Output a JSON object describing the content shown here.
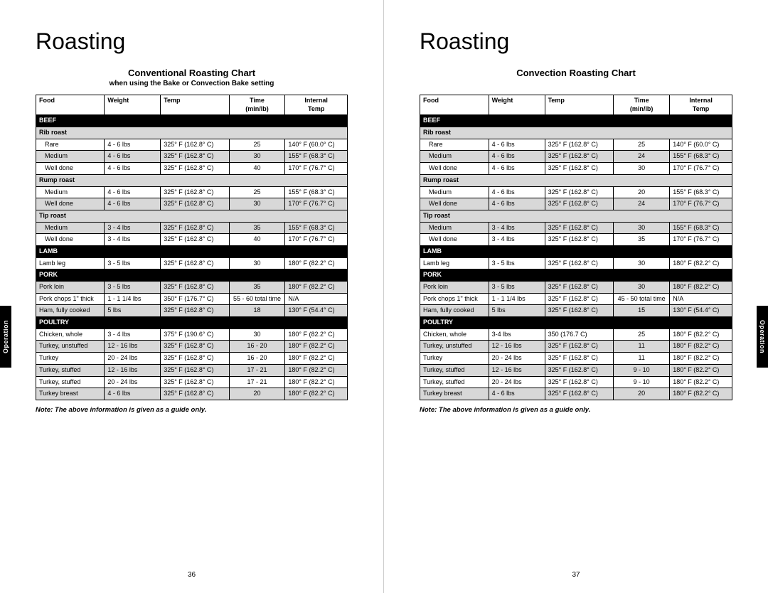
{
  "side_tab_label": "Operation",
  "left": {
    "page_title": "Roasting",
    "chart_title": "Conventional Roasting Chart",
    "chart_subtitle": "when using the Bake or Convection Bake setting",
    "headers": {
      "food": "Food",
      "weight": "Weight",
      "temp": "Temp",
      "time1": "Time",
      "time2": "(min/lb)",
      "internal1": "Internal",
      "internal2": "Temp"
    },
    "note": "Note: The above information is given as a guide only.",
    "page_num": "36",
    "sections": [
      {
        "name": "BEEF",
        "groups": [
          {
            "sub": "Rib roast",
            "rows": [
              {
                "food": "Rare",
                "weight": "4 - 6 lbs",
                "temp": "325° F (162.8° C)",
                "time": "25",
                "internal": "140° F (60.0° C)",
                "alt": false
              },
              {
                "food": "Medium",
                "weight": "4 - 6 lbs",
                "temp": "325° F (162.8° C)",
                "time": "30",
                "internal": "155° F (68.3° C)",
                "alt": true
              },
              {
                "food": "Well done",
                "weight": "4 - 6 lbs",
                "temp": "325° F (162.8° C)",
                "time": "40",
                "internal": "170° F (76.7° C)",
                "alt": false
              }
            ]
          },
          {
            "sub": "Rump roast",
            "rows": [
              {
                "food": "Medium",
                "weight": "4 - 6 lbs",
                "temp": "325° F (162.8° C)",
                "time": "25",
                "internal": "155° F (68.3° C)",
                "alt": false
              },
              {
                "food": "Well done",
                "weight": "4 - 6 lbs",
                "temp": "325° F (162.8° C)",
                "time": "30",
                "internal": "170° F (76.7° C)",
                "alt": true
              }
            ]
          },
          {
            "sub": "Tip roast",
            "rows": [
              {
                "food": "Medium",
                "weight": "3 - 4 lbs",
                "temp": "325° F (162.8° C)",
                "time": "35",
                "internal": "155° F (68.3° C)",
                "alt": true
              },
              {
                "food": "Well done",
                "weight": "3 - 4 lbs",
                "temp": "325° F (162.8° C)",
                "time": "40",
                "internal": "170° F (76.7° C)",
                "alt": false
              }
            ]
          }
        ]
      },
      {
        "name": "LAMB",
        "groups": [
          {
            "sub": null,
            "rows": [
              {
                "food": "Lamb leg",
                "weight": "3 - 5 lbs",
                "temp": "325° F (162.8° C)",
                "time": "30",
                "internal": "180° F (82.2° C)",
                "alt": false,
                "noindent": true
              }
            ]
          }
        ]
      },
      {
        "name": "PORK",
        "groups": [
          {
            "sub": null,
            "rows": [
              {
                "food": "Pork loin",
                "weight": "3 - 5 lbs",
                "temp": "325° F (162.8° C)",
                "time": "35",
                "internal": "180° F (82.2° C)",
                "alt": true,
                "noindent": true
              },
              {
                "food": "Pork chops 1\" thick",
                "weight": "1 - 1 1/4 lbs",
                "temp": "350° F (176.7° C)",
                "time": "55 - 60 total time",
                "internal": "N/A",
                "alt": false,
                "noindent": true
              },
              {
                "food": "Ham, fully cooked",
                "weight": "5 lbs",
                "temp": "325° F (162.8° C)",
                "time": "18",
                "internal": "130° F (54.4° C)",
                "alt": true,
                "noindent": true
              }
            ]
          }
        ]
      },
      {
        "name": "POULTRY",
        "groups": [
          {
            "sub": null,
            "rows": [
              {
                "food": "Chicken, whole",
                "weight": "3 - 4 lbs",
                "temp": "375° F (190.6° C)",
                "time": "30",
                "internal": "180° F (82.2° C)",
                "alt": false,
                "noindent": true
              },
              {
                "food": "Turkey, unstuffed",
                "weight": "12 - 16 lbs",
                "temp": "325° F (162.8° C)",
                "time": "16 - 20",
                "internal": "180° F (82.2° C)",
                "alt": true,
                "noindent": true
              },
              {
                "food": "Turkey",
                "weight": "20 - 24 lbs",
                "temp": "325° F (162.8° C)",
                "time": "16 - 20",
                "internal": "180° F (82.2° C)",
                "alt": false,
                "noindent": true
              },
              {
                "food": "Turkey, stuffed",
                "weight": "12 - 16 lbs",
                "temp": "325° F (162.8° C)",
                "time": "17 - 21",
                "internal": "180° F (82.2° C)",
                "alt": true,
                "noindent": true
              },
              {
                "food": "Turkey, stuffed",
                "weight": "20 - 24 lbs",
                "temp": "325° F (162.8° C)",
                "time": "17 - 21",
                "internal": "180° F (82.2° C)",
                "alt": false,
                "noindent": true
              },
              {
                "food": "Turkey breast",
                "weight": "4 - 6 lbs",
                "temp": "325° F (162.8° C)",
                "time": "20",
                "internal": "180° F (82.2° C)",
                "alt": true,
                "noindent": true
              }
            ]
          }
        ]
      }
    ]
  },
  "right": {
    "page_title": "Roasting",
    "chart_title": "Convection Roasting Chart",
    "chart_subtitle": "",
    "headers": {
      "food": "Food",
      "weight": "Weight",
      "temp": "Temp",
      "time1": "Time",
      "time2": "(min/lb)",
      "internal1": "Internal",
      "internal2": "Temp"
    },
    "note": "Note: The above information is given as a guide only.",
    "page_num": "37",
    "sections": [
      {
        "name": "BEEF",
        "groups": [
          {
            "sub": "Rib roast",
            "rows": [
              {
                "food": "Rare",
                "weight": "4 - 6 lbs",
                "temp": "325° F (162.8° C)",
                "time": "25",
                "internal": "140° F (60.0° C)",
                "alt": false
              },
              {
                "food": "Medium",
                "weight": "4 - 6 lbs",
                "temp": "325° F (162.8° C)",
                "time": "24",
                "internal": "155° F (68.3° C)",
                "alt": true
              },
              {
                "food": "Well done",
                "weight": "4 - 6 lbs",
                "temp": "325° F (162.8° C)",
                "time": "30",
                "internal": "170° F (76.7° C)",
                "alt": false
              }
            ]
          },
          {
            "sub": "Rump roast",
            "rows": [
              {
                "food": "Medium",
                "weight": "4 - 6 lbs",
                "temp": "325° F (162.8° C)",
                "time": "20",
                "internal": "155° F (68.3° C)",
                "alt": false
              },
              {
                "food": "Well done",
                "weight": "4 - 6 lbs",
                "temp": "325° F (162.8° C)",
                "time": "24",
                "internal": "170° F (76.7° C)",
                "alt": true
              }
            ]
          },
          {
            "sub": "Tip roast",
            "rows": [
              {
                "food": "Medium",
                "weight": "3 - 4 lbs",
                "temp": "325° F (162.8° C)",
                "time": "30",
                "internal": "155° F (68.3° C)",
                "alt": true
              },
              {
                "food": "Well done",
                "weight": "3 - 4 lbs",
                "temp": "325° F (162.8° C)",
                "time": "35",
                "internal": "170° F (76.7° C)",
                "alt": false
              }
            ]
          }
        ]
      },
      {
        "name": "LAMB",
        "groups": [
          {
            "sub": null,
            "rows": [
              {
                "food": "Lamb leg",
                "weight": "3 - 5 lbs",
                "temp": "325° F (162.8° C)",
                "time": "30",
                "internal": "180° F (82.2° C)",
                "alt": false,
                "noindent": true
              }
            ]
          }
        ]
      },
      {
        "name": "PORK",
        "groups": [
          {
            "sub": null,
            "rows": [
              {
                "food": "Pork loin",
                "weight": "3 - 5 lbs",
                "temp": "325° F (162.8° C)",
                "time": "30",
                "internal": "180° F (82.2° C)",
                "alt": true,
                "noindent": true
              },
              {
                "food": "Pork chops 1\" thick",
                "weight": "1 - 1 1/4 lbs",
                "temp": "325° F (162.8° C)",
                "time": "45 - 50 total time",
                "internal": "N/A",
                "alt": false,
                "noindent": true
              },
              {
                "food": "Ham, fully cooked",
                "weight": "5 lbs",
                "temp": "325° F (162.8° C)",
                "time": "15",
                "internal": "130° F (54.4° C)",
                "alt": true,
                "noindent": true
              }
            ]
          }
        ]
      },
      {
        "name": "POULTRY",
        "groups": [
          {
            "sub": null,
            "rows": [
              {
                "food": "Chicken, whole",
                "weight": "3-4 lbs",
                "temp": "350 (176.7 C)",
                "time": "25",
                "internal": "180° F (82.2° C)",
                "alt": false,
                "noindent": true
              },
              {
                "food": "Turkey, unstuffed",
                "weight": "12 - 16 lbs",
                "temp": "325° F (162.8° C)",
                "time": "11",
                "internal": "180° F (82.2° C)",
                "alt": true,
                "noindent": true
              },
              {
                "food": "Turkey",
                "weight": "20 - 24 lbs",
                "temp": "325° F (162.8° C)",
                "time": "11",
                "internal": "180° F (82.2° C)",
                "alt": false,
                "noindent": true
              },
              {
                "food": "Turkey, stuffed",
                "weight": "12 - 16 lbs",
                "temp": "325° F (162.8° C)",
                "time": "9 - 10",
                "internal": "180° F (82.2° C)",
                "alt": true,
                "noindent": true
              },
              {
                "food": "Turkey, stuffed",
                "weight": "20 - 24 lbs",
                "temp": "325° F (162.8° C)",
                "time": "9 - 10",
                "internal": "180° F (82.2° C)",
                "alt": false,
                "noindent": true
              },
              {
                "food": "Turkey breast",
                "weight": "4 - 6 lbs",
                "temp": "325° F (162.8° C)",
                "time": "20",
                "internal": "180° F (82.2° C)",
                "alt": true,
                "noindent": true
              }
            ]
          }
        ]
      }
    ]
  }
}
